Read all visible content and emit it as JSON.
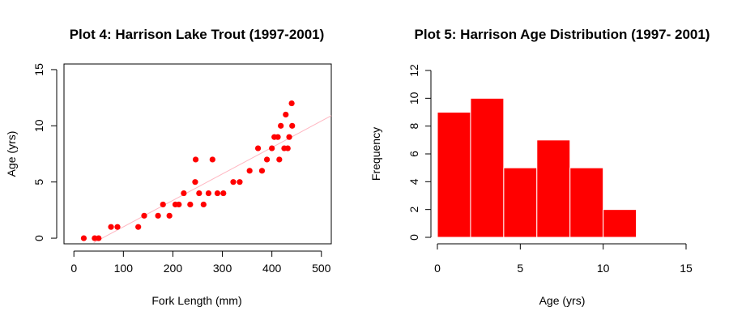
{
  "chart_data": [
    {
      "type": "scatter",
      "title": "Plot 4: Harrison Lake Trout (1997-2001)",
      "xlabel": "Fork Length (mm)",
      "ylabel": "Age (yrs)",
      "xlim": [
        -20,
        520
      ],
      "ylim": [
        -0.5,
        15.5
      ],
      "xticks": [
        0,
        100,
        200,
        300,
        400,
        500
      ],
      "yticks": [
        0,
        5,
        10,
        15
      ],
      "point_color": "#ff0000",
      "line_color": "#ffb6c1",
      "fit_line": {
        "x": [
          40,
          520
        ],
        "y": [
          -0.4,
          10.9
        ]
      },
      "series": [
        {
          "x": [
            20,
            42,
            50,
            75,
            88,
            130,
            142,
            170,
            180,
            193,
            205,
            212,
            222,
            235,
            245,
            246,
            253,
            262,
            272,
            280,
            290,
            302,
            322,
            335,
            355,
            372,
            380,
            390,
            400,
            405,
            412,
            415,
            418,
            425,
            428,
            432,
            435,
            440,
            441
          ],
          "y": [
            0,
            0,
            0,
            1,
            1,
            1,
            2,
            2,
            3,
            2,
            3,
            3,
            4,
            3,
            5,
            7,
            4,
            3,
            4,
            7,
            4,
            4,
            5,
            5,
            6,
            8,
            6,
            7,
            8,
            9,
            9,
            7,
            10,
            8,
            11,
            8,
            9,
            12,
            10
          ]
        }
      ]
    },
    {
      "type": "bar",
      "title": "Plot 5: Harrison Age Distribution (1997- 2001)",
      "xlabel": "Age (yrs)",
      "ylabel": "Frequency",
      "xlim": [
        0,
        15
      ],
      "ylim": [
        0,
        12
      ],
      "xticks": [
        0,
        5,
        10,
        15
      ],
      "yticks": [
        0,
        2,
        4,
        6,
        8,
        10,
        12
      ],
      "bar_color": "#ff0000",
      "bins": [
        [
          0,
          2
        ],
        [
          2,
          4
        ],
        [
          4,
          6
        ],
        [
          6,
          8
        ],
        [
          8,
          10
        ],
        [
          10,
          12
        ]
      ],
      "values": [
        9,
        10,
        5,
        7,
        5,
        2
      ]
    }
  ]
}
